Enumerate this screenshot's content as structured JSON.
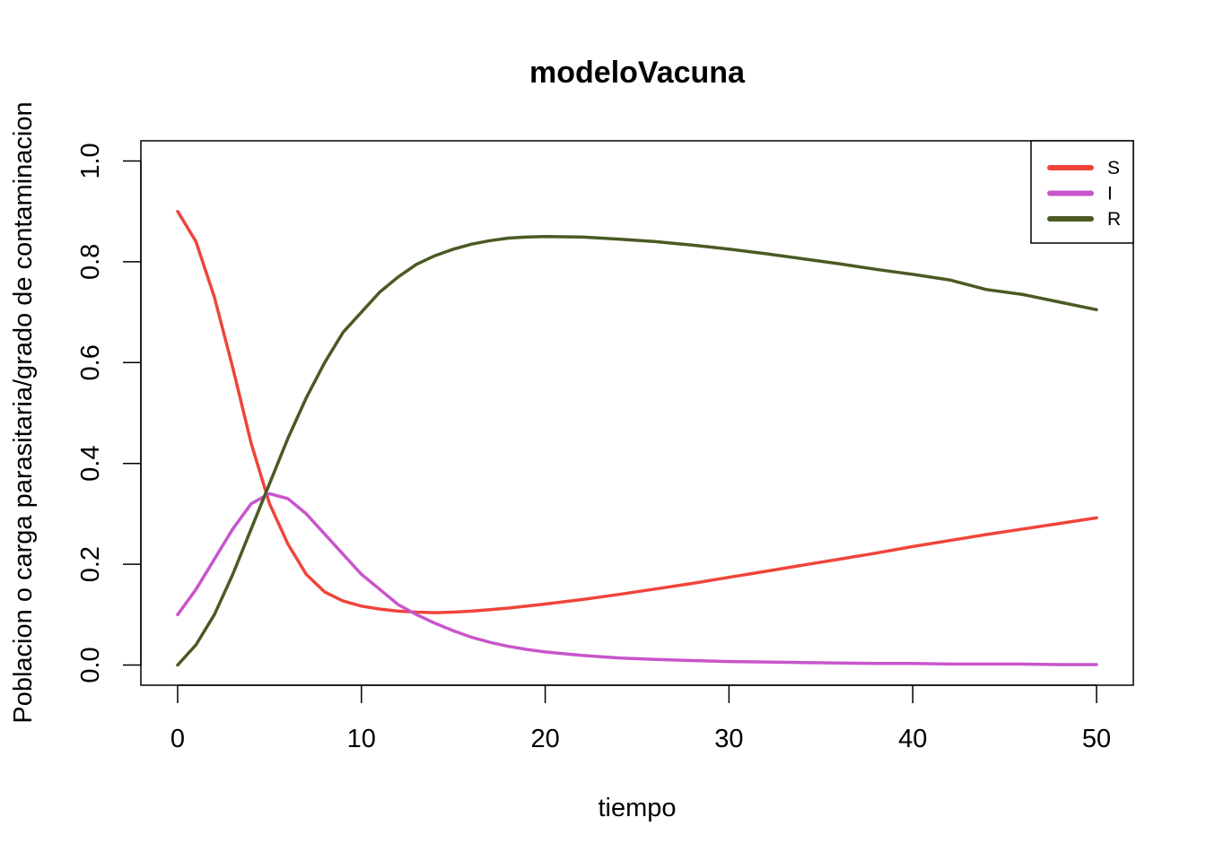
{
  "chart_data": {
    "type": "line",
    "title": "modeloVacuna",
    "xlabel": "tiempo",
    "ylabel": "Poblacion o carga parasitaria/grado de contaminacion",
    "xlim": [
      -2,
      52
    ],
    "ylim": [
      -0.04,
      1.04
    ],
    "x_ticks": [
      0,
      10,
      20,
      30,
      40,
      50
    ],
    "y_ticks": [
      0.0,
      0.2,
      0.4,
      0.6,
      0.8,
      1.0
    ],
    "x_tick_labels": [
      "0",
      "10",
      "20",
      "30",
      "40",
      "50"
    ],
    "y_tick_labels": [
      "0.0",
      "0.2",
      "0.4",
      "0.6",
      "0.8",
      "1.0"
    ],
    "legend_position": "top-right",
    "x": [
      0,
      1,
      2,
      3,
      4,
      5,
      6,
      7,
      8,
      9,
      10,
      11,
      12,
      13,
      14,
      15,
      16,
      17,
      18,
      19,
      20,
      22,
      24,
      26,
      28,
      30,
      32,
      34,
      36,
      38,
      40,
      42,
      44,
      46,
      48,
      50
    ],
    "series": [
      {
        "name": "S",
        "color": "#f0443a",
        "values": [
          0.9,
          0.84,
          0.73,
          0.59,
          0.44,
          0.32,
          0.24,
          0.18,
          0.145,
          0.127,
          0.117,
          0.111,
          0.107,
          0.105,
          0.104,
          0.105,
          0.107,
          0.11,
          0.113,
          0.117,
          0.121,
          0.13,
          0.14,
          0.151,
          0.162,
          0.174,
          0.186,
          0.198,
          0.21,
          0.222,
          0.235,
          0.247,
          0.259,
          0.27,
          0.281,
          0.292
        ]
      },
      {
        "name": "I",
        "color": "#c855cc",
        "values": [
          0.1,
          0.15,
          0.21,
          0.27,
          0.32,
          0.34,
          0.33,
          0.3,
          0.26,
          0.22,
          0.18,
          0.15,
          0.12,
          0.1,
          0.083,
          0.068,
          0.055,
          0.045,
          0.037,
          0.031,
          0.026,
          0.019,
          0.014,
          0.011,
          0.009,
          0.007,
          0.006,
          0.005,
          0.004,
          0.003,
          0.003,
          0.002,
          0.002,
          0.002,
          0.001,
          0.001
        ]
      },
      {
        "name": "R",
        "color": "#4a5a24",
        "values": [
          0.0,
          0.04,
          0.1,
          0.18,
          0.27,
          0.36,
          0.45,
          0.53,
          0.6,
          0.66,
          0.7,
          0.74,
          0.77,
          0.795,
          0.812,
          0.825,
          0.835,
          0.842,
          0.847,
          0.849,
          0.85,
          0.849,
          0.845,
          0.84,
          0.833,
          0.825,
          0.816,
          0.806,
          0.796,
          0.785,
          0.775,
          0.764,
          0.745,
          0.735,
          0.72,
          0.705
        ]
      }
    ]
  }
}
